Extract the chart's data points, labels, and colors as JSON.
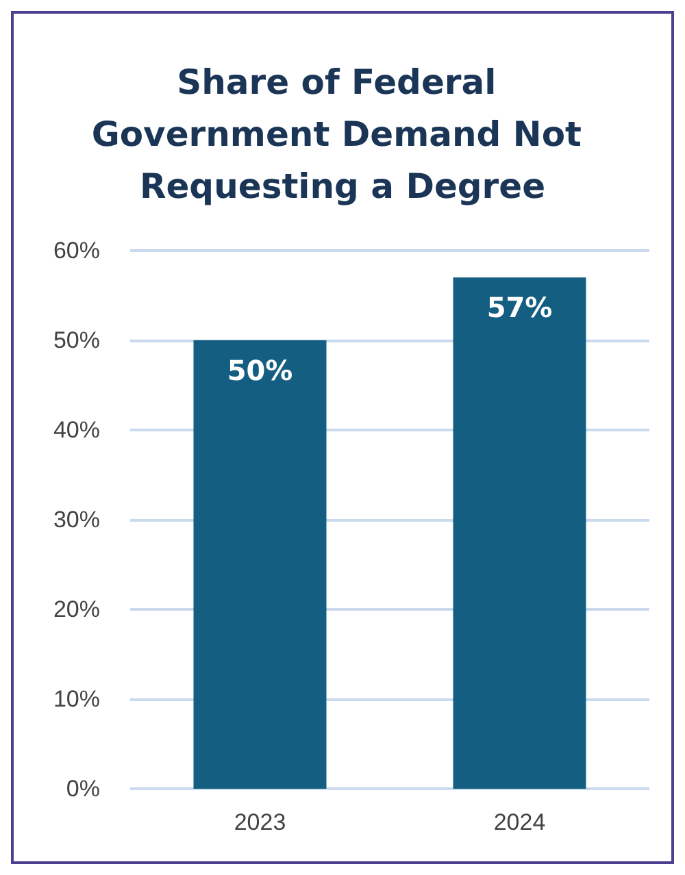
{
  "chart_data": {
    "type": "bar",
    "title": "Share of Federal Government Demand Not Requesting a Degree",
    "categories": [
      "2023",
      "2024"
    ],
    "values": [
      50,
      57
    ],
    "color": "#145e82",
    "value_labels": [
      "50%",
      "57%"
    ],
    "ylim": [
      0,
      60
    ],
    "yticks": [
      {
        "value": 0,
        "label": "0%"
      },
      {
        "value": 10,
        "label": "10%"
      },
      {
        "value": 20,
        "label": "20%"
      },
      {
        "value": 30,
        "label": "30%"
      },
      {
        "value": 40,
        "label": "40%"
      },
      {
        "value": 50,
        "label": "50%"
      },
      {
        "value": 60,
        "label": "60%"
      }
    ],
    "grid": "y"
  }
}
